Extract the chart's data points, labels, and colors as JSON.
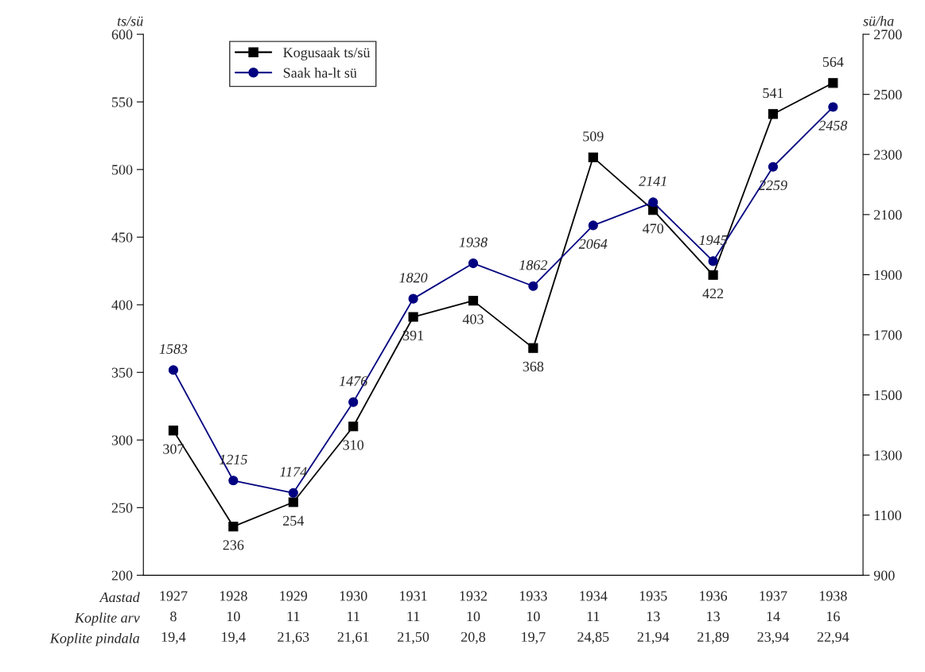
{
  "chart_data": {
    "type": "line",
    "categories": [
      "1927\n8\n19,4",
      "1928\n10\n19,4",
      "1929\n11\n21,63",
      "1930\n11\n21,61",
      "1931\n11\n21,50",
      "1932\n10\n20,8",
      "1933\n10\n19,7",
      "1934\n11\n24,85",
      "1935\n13\n21,94",
      "1936\n13\n21,89",
      "1937\n14\n23,94",
      "1938\n16\n22,94"
    ],
    "xlabel": "Aastad\nKoplite arv\nKoplite pindala",
    "ylabel": "ts/sü",
    "y2label": "sü/ha",
    "series": [
      {
        "name": "Kogusaak ts/sü",
        "color": "#000000",
        "marker": "square",
        "values": [
          307,
          236,
          254,
          310,
          391,
          403,
          368,
          509,
          470,
          422,
          541,
          564
        ]
      },
      {
        "name": "Saak ha-lt sü",
        "color": "#000080",
        "marker": "circle",
        "axis": "y2",
        "values": [
          1583,
          1215,
          1174,
          1476,
          1820,
          1938,
          1862,
          2064,
          2141,
          1945,
          2259,
          2458
        ]
      }
    ],
    "ylim": [
      200,
      600
    ],
    "yticks": [
      200,
      250,
      300,
      350,
      400,
      450,
      500,
      550,
      600
    ],
    "y2lim": [
      900,
      2700
    ],
    "y2ticks": [
      900,
      1100,
      1300,
      1500,
      1700,
      1900,
      2100,
      2300,
      2500,
      2700
    ],
    "data_labels": true,
    "grid": false,
    "legend": "top left",
    "line_style": "solid"
  }
}
